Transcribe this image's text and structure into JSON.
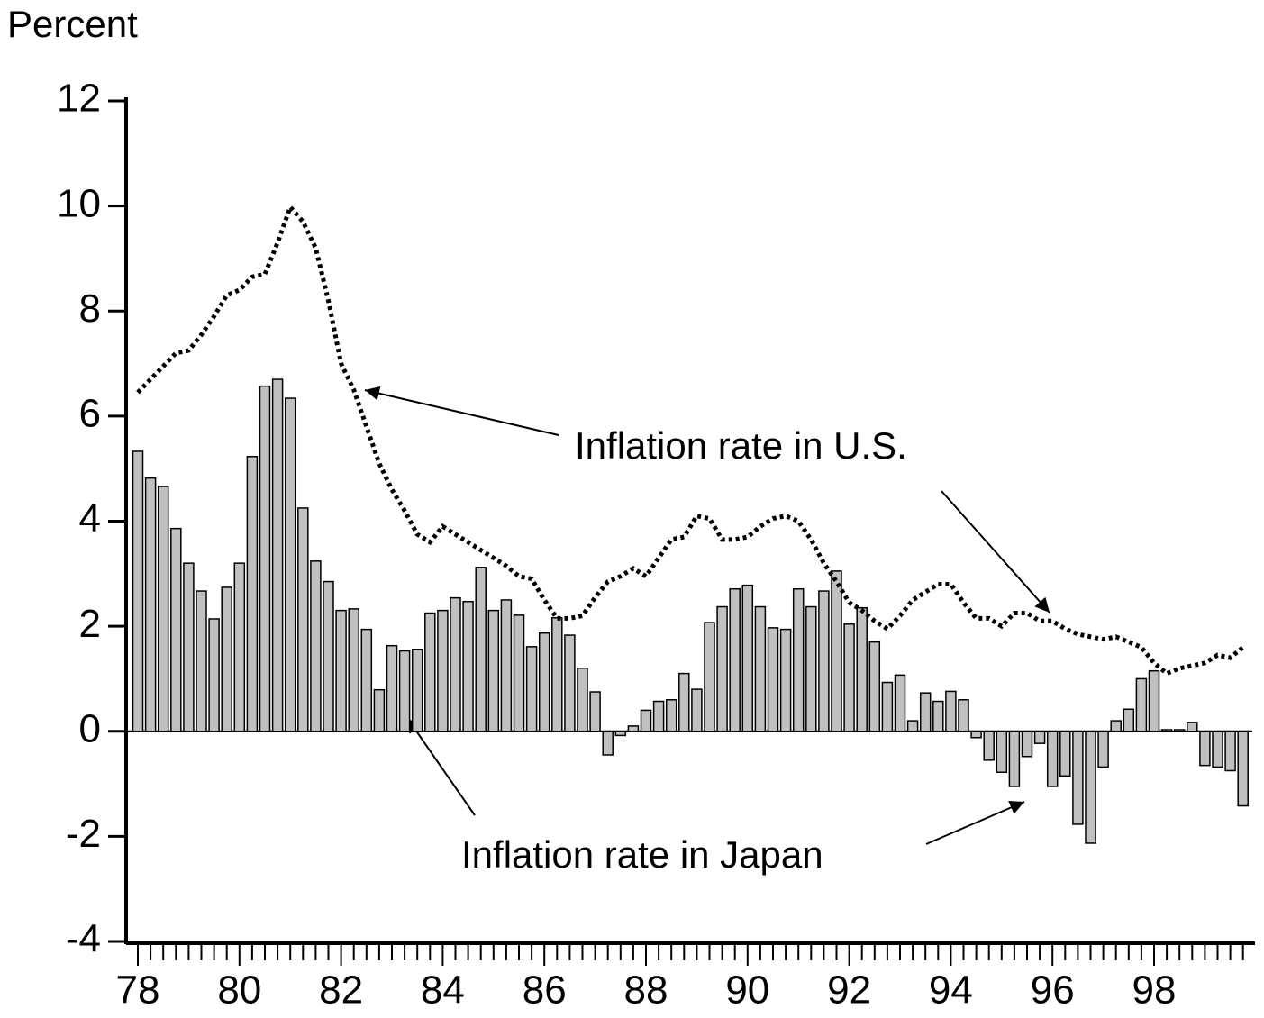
{
  "chart_data": {
    "type": "bar",
    "y_label": "Percent",
    "categories": [
      "78",
      null,
      null,
      null,
      null,
      null,
      null,
      null,
      "80",
      null,
      null,
      null,
      null,
      null,
      null,
      null,
      "82",
      null,
      null,
      null,
      null,
      null,
      null,
      null,
      "84",
      null,
      null,
      null,
      null,
      null,
      null,
      null,
      "86",
      null,
      null,
      null,
      null,
      null,
      null,
      null,
      "88",
      null,
      null,
      null,
      null,
      null,
      null,
      null,
      "90",
      null,
      null,
      null,
      null,
      null,
      null,
      null,
      "92",
      null,
      null,
      null,
      null,
      null,
      null,
      null,
      "94",
      null,
      null,
      null,
      null,
      null,
      null,
      null,
      "96",
      null,
      null,
      null,
      null,
      null,
      null,
      null,
      "98",
      null,
      null,
      null,
      null,
      null,
      null,
      null
    ],
    "series": [
      {
        "name": "Inflation rate in Japan",
        "type": "bar",
        "color": "#c0c0c0",
        "values": [
          5.33,
          4.82,
          4.66,
          3.86,
          3.2,
          2.67,
          2.14,
          2.74,
          3.2,
          5.23,
          6.57,
          6.7,
          6.34,
          4.25,
          3.24,
          2.85,
          2.3,
          2.33,
          1.94,
          0.79,
          1.63,
          1.53,
          1.56,
          2.25,
          2.3,
          2.54,
          2.47,
          3.12,
          2.3,
          2.5,
          2.21,
          1.61,
          1.87,
          2.16,
          1.83,
          1.2,
          0.75,
          -0.45,
          -0.08,
          0.1,
          0.4,
          0.57,
          0.6,
          1.1,
          0.8,
          2.07,
          2.37,
          2.71,
          2.78,
          2.37,
          1.97,
          1.94,
          2.71,
          2.37,
          2.67,
          3.05,
          2.04,
          2.35,
          1.7,
          0.93,
          1.07,
          0.2,
          0.73,
          0.57,
          0.76,
          0.6,
          -0.12,
          -0.55,
          -0.78,
          -1.05,
          -0.48,
          -0.23,
          -1.05,
          -0.85,
          -1.77,
          -2.13,
          -0.68,
          0.2,
          0.42,
          1.0,
          1.15,
          0.03,
          0.03,
          0.17,
          -0.65,
          -0.68,
          -0.75,
          -1.42
        ]
      },
      {
        "name": "Inflation rate in U.S.",
        "type": "line",
        "color": "#000000",
        "values": [
          6.45,
          6.7,
          6.95,
          7.2,
          7.25,
          7.55,
          7.9,
          8.3,
          8.4,
          8.65,
          8.7,
          9.3,
          9.98,
          9.7,
          9.2,
          8.2,
          7.0,
          6.5,
          5.8,
          5.1,
          4.6,
          4.2,
          3.75,
          3.6,
          3.9,
          3.75,
          3.6,
          3.45,
          3.3,
          3.15,
          2.95,
          2.9,
          2.5,
          2.15,
          2.15,
          2.2,
          2.55,
          2.85,
          2.95,
          3.1,
          2.95,
          3.3,
          3.65,
          3.7,
          4.1,
          4.05,
          3.65,
          3.65,
          3.7,
          3.9,
          4.05,
          4.1,
          4.0,
          3.65,
          3.2,
          2.85,
          2.45,
          2.3,
          2.1,
          1.95,
          2.2,
          2.5,
          2.65,
          2.8,
          2.8,
          2.45,
          2.15,
          2.15,
          2.0,
          2.25,
          2.25,
          2.1,
          2.1,
          1.95,
          1.85,
          1.8,
          1.75,
          1.8,
          1.7,
          1.6,
          1.3,
          1.1,
          1.2,
          1.25,
          1.3,
          1.45,
          1.4,
          1.6
        ]
      }
    ],
    "ylim": [
      -4,
      12
    ],
    "yticks": [
      -4,
      -2,
      0,
      2,
      4,
      6,
      8,
      10,
      12
    ]
  }
}
